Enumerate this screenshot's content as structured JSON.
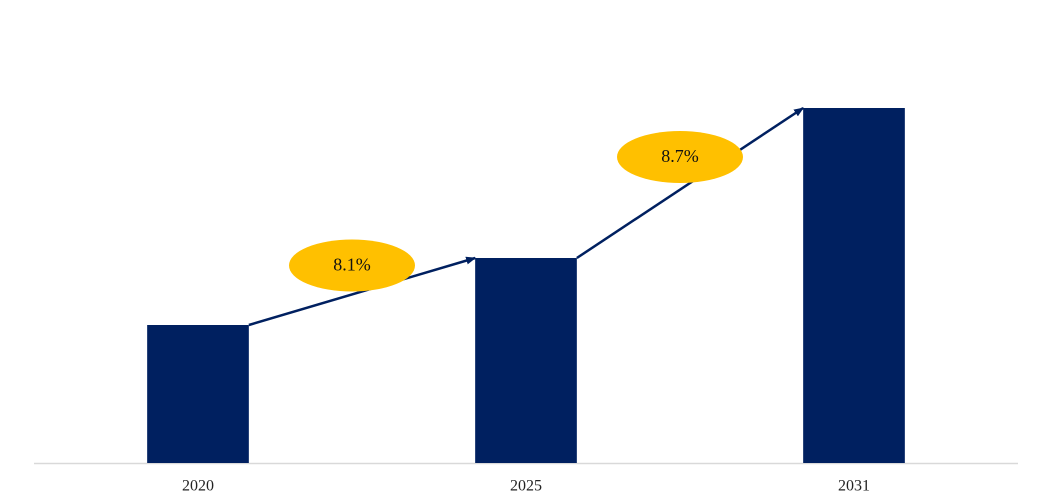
{
  "chart_data": {
    "type": "bar",
    "categories": [
      "2020",
      "2025",
      "2031"
    ],
    "values": [
      138,
      205,
      355
    ],
    "color": "#002060",
    "ylim": [
      0,
      423
    ],
    "annotations": [
      "8.1%",
      "8.7%"
    ],
    "annotation_color": "#ffc000"
  }
}
